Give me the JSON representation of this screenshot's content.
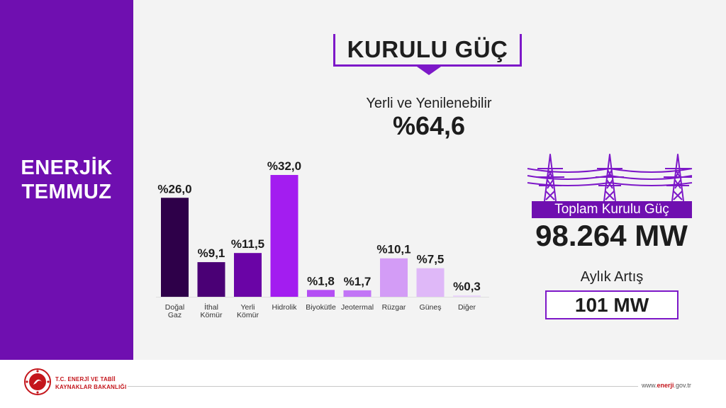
{
  "sidebar": {
    "title_line1": "ENERJİK",
    "title_line2": "TEMMUZ"
  },
  "header": {
    "title": "KURULU GÜÇ"
  },
  "renewable": {
    "label": "Yerli ve Yenilenebilir",
    "value": "%64,6"
  },
  "total": {
    "label": "Toplam Kurulu Güç",
    "value": "98.264 MW"
  },
  "monthly": {
    "label": "Aylık Artış",
    "value": "101 MW"
  },
  "footer": {
    "ministry_line1": "T.C. ENERJİ VE TABİİ",
    "ministry_line2": "KAYNAKLAR BAKANLIĞI",
    "website_prefix": "www.",
    "website_bold": "enerji",
    "website_suffix": ".gov.tr"
  },
  "colors": {
    "sidebar": "#6f0fb0",
    "accent": "#7d18c8",
    "logo": "#c4161c"
  },
  "icons": {
    "pylon": "transmission-tower-icon",
    "logo": "ministry-logo-icon"
  },
  "chart_data": {
    "type": "bar",
    "categories": [
      [
        "Doğal",
        "Gaz"
      ],
      [
        "İthal",
        "Kömür"
      ],
      [
        "Yerli",
        "Kömür"
      ],
      [
        "Hidrolik"
      ],
      [
        "Biyokütle"
      ],
      [
        "Jeotermal"
      ],
      [
        "Rüzgar"
      ],
      [
        "Güneş"
      ],
      [
        "Diğer"
      ]
    ],
    "values": [
      26.0,
      9.1,
      11.5,
      32.0,
      1.8,
      1.7,
      10.1,
      7.5,
      0.3
    ],
    "value_labels": [
      "%26,0",
      "%9,1",
      "%11,5",
      "%32,0",
      "%1,8",
      "%1,7",
      "%10,1",
      "%7,5",
      "%0,3"
    ],
    "colors": [
      "#2e0049",
      "#4a0075",
      "#6a04a6",
      "#a31df0",
      "#b44ef4",
      "#c275f6",
      "#d39cf6",
      "#dfb8f8",
      "#ead5fb"
    ],
    "ylim": [
      0,
      32
    ],
    "grid": false,
    "legend": "none"
  }
}
